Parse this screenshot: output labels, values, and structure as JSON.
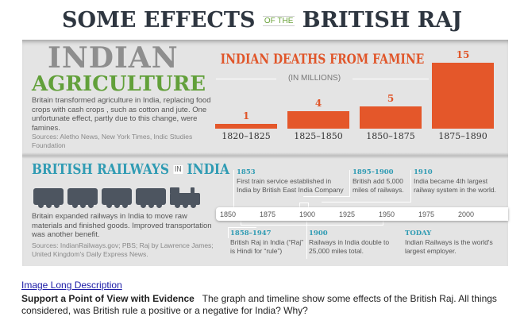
{
  "title": {
    "part1": "SOME EFFECTS",
    "part2": "OF THE",
    "part3": "BRITISH RAJ"
  },
  "agriculture": {
    "heading1": "INDIAN",
    "heading2": "AGRICULTURE",
    "body": "Britain transformed agriculture in India, replacing food crops with cash crops , such as cotton and jute. One unfortunate effect, partly due to this change, were famines.",
    "sources": "Sources: Aletho News, New York Times, Indic Studies Foundation"
  },
  "chart_data": {
    "type": "bar",
    "title": "INDIAN DEATHS FROM FAMINE",
    "subtitle": "(IN MILLIONS)",
    "categories": [
      "1820–1825",
      "1825–1850",
      "1850–1875",
      "1875–1890"
    ],
    "values": [
      1,
      4,
      5,
      15
    ],
    "value_labels": [
      "1",
      "4",
      "5",
      "15"
    ],
    "ylim": [
      0,
      15
    ],
    "grid": false,
    "color": "#e4572a"
  },
  "railways": {
    "heading1": "BRITISH RAILWAYS",
    "heading_in": "IN",
    "heading2": "INDIA",
    "body": "Britain expanded railways in India to move raw materials and finished goods. Improved transportation was another benefit.",
    "sources": "Sources: IndianRailways.gov; PBS; Raj by Lawrence James; United Kingdom's Daily Express News.",
    "timeline": {
      "years": [
        "1850",
        "1875",
        "1900",
        "1925",
        "1950",
        "1975",
        "2000"
      ],
      "events_above": [
        {
          "date": "1853",
          "text": "First train service established in India by British East India Company"
        },
        {
          "date": "1895–1900",
          "text": "British add 5,000 miles of railways."
        },
        {
          "date": "1910",
          "text": "India became 4th largest railway system in the world."
        }
      ],
      "events_below": [
        {
          "date": "1858–1947",
          "text": "British Raj in India (“Raj” is Hindi for “rule”)"
        },
        {
          "date": "1900",
          "text": "Railways in India double to 25,000 miles total."
        },
        {
          "date": "TODAY",
          "text": "Indian Railways is the world's largest employer."
        }
      ]
    }
  },
  "page": {
    "link": "Image Long Description",
    "question_bold": "Support a Point of View with Evidence",
    "question_text": "The graph and timeline show some effects of the British Raj. All things considered, was British rule a positive or a negative for India? Why?"
  }
}
